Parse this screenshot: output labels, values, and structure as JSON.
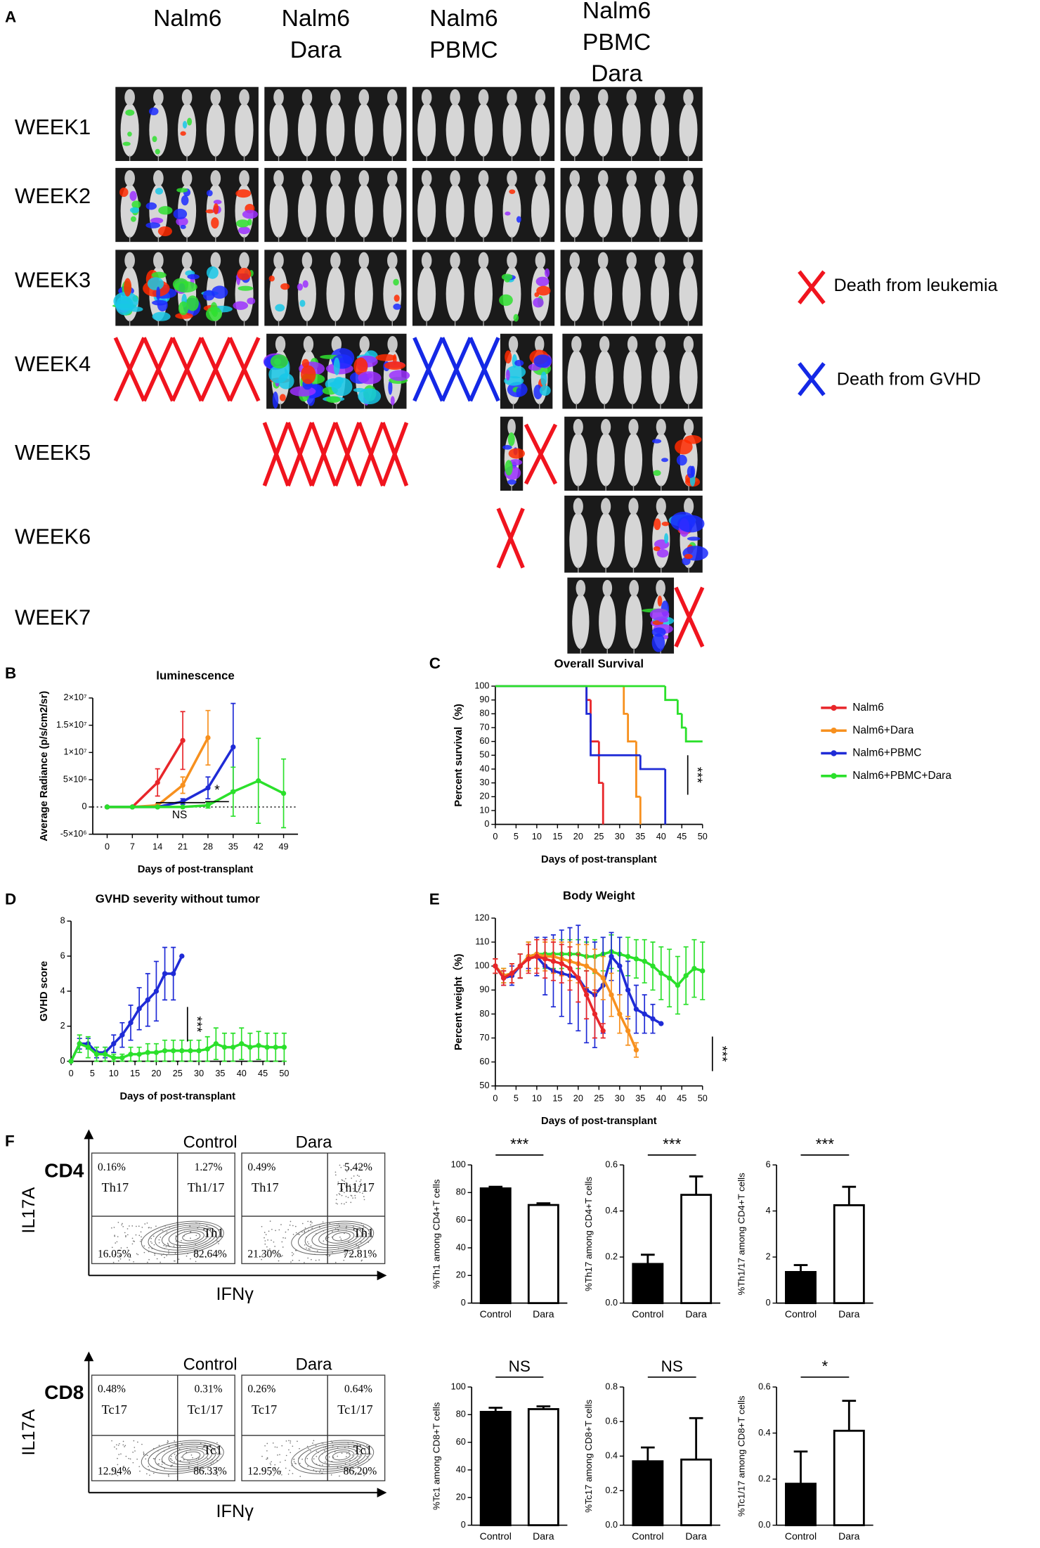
{
  "panel_labels": [
    "A",
    "B",
    "C",
    "D",
    "E",
    "F"
  ],
  "panel_a": {
    "columns": [
      [
        "Nalm6"
      ],
      [
        "Nalm6",
        "Dara"
      ],
      [
        "Nalm6",
        "PBMC"
      ],
      [
        "Nalm6",
        "PBMC",
        "Dara"
      ]
    ],
    "rows": [
      "WEEK1",
      "WEEK2",
      "WEEK3",
      "WEEK4",
      "WEEK5",
      "WEEK6",
      "WEEK7"
    ],
    "legend": [
      "Death from leukemia",
      "Death from GVHD"
    ]
  },
  "chart_data": [
    {
      "type": "line",
      "title": "luminescence",
      "xlabel": "Days of post-transplant",
      "ylabel": "Average Radiance (p/s/cm2/sr)",
      "xlim": [
        -4,
        53
      ],
      "xticks": [
        0,
        7,
        14,
        21,
        28,
        35,
        42,
        49
      ],
      "ylim": [
        -5000000,
        20000000
      ],
      "yticks": [
        {
          "value": -5000000,
          "label": "-5×10⁶"
        },
        0,
        {
          "value": 5000000,
          "label": "5×10⁶"
        },
        {
          "value": 10000000,
          "label": "1×10⁷"
        },
        {
          "value": 15000000,
          "label": "1.5×10⁷"
        },
        {
          "value": 20000000,
          "label": "2×10⁷"
        }
      ],
      "annotations": [
        "NS",
        "*"
      ],
      "series": [
        {
          "color": "#e8262a",
          "x": [
            0,
            7,
            14,
            21
          ],
          "values": [
            0,
            0,
            4500000,
            12200000
          ],
          "errors": [
            0,
            0,
            2500000,
            5300000
          ]
        },
        {
          "color": "#f7901e",
          "x": [
            0,
            7,
            14,
            21,
            28
          ],
          "values": [
            0,
            0,
            300000,
            4000000,
            12700000
          ],
          "errors": [
            0,
            0,
            300000,
            1500000,
            5000000
          ]
        },
        {
          "color": "#1f2bd6",
          "x": [
            0,
            7,
            14,
            21,
            28,
            35
          ],
          "values": [
            0,
            0,
            0,
            1000000,
            3500000,
            11000000
          ],
          "errors": [
            0,
            0,
            0,
            500000,
            2000000,
            8000000
          ]
        },
        {
          "color": "#2be02b",
          "x": [
            0,
            7,
            14,
            21,
            28,
            35,
            42,
            49
          ],
          "values": [
            0,
            0,
            0,
            0,
            300000,
            2800000,
            4800000,
            2500000
          ],
          "errors": [
            0,
            0,
            0,
            0,
            500000,
            4500000,
            7800000,
            6300000
          ]
        }
      ]
    },
    {
      "type": "step",
      "title": "Overall Survival",
      "xlabel": "Days of post-transplant",
      "ylabel": "Percent survival（%)",
      "xlim": [
        0,
        50
      ],
      "xticks": [
        0,
        5,
        10,
        15,
        20,
        25,
        30,
        35,
        40,
        45,
        50
      ],
      "ylim": [
        0,
        100
      ],
      "yticks": [
        0,
        10,
        20,
        30,
        40,
        50,
        60,
        70,
        80,
        90,
        100
      ],
      "annotation": "***",
      "series": [
        {
          "name": "Nalm6",
          "color": "#e8262a",
          "x": [
            0,
            22,
            23,
            25,
            26
          ],
          "values": [
            100,
            90,
            60,
            30,
            0
          ]
        },
        {
          "name": "Nalm6+Dara",
          "color": "#f7901e",
          "x": [
            0,
            31,
            32,
            34,
            35
          ],
          "values": [
            100,
            80,
            60,
            20,
            0
          ]
        },
        {
          "name": "Nalm6+PBMC",
          "color": "#1f2bd6",
          "x": [
            0,
            22,
            23,
            33,
            35,
            41
          ],
          "values": [
            100,
            80,
            50,
            50,
            40,
            0
          ]
        },
        {
          "name": "Nalm6+PBMC+Dara",
          "color": "#2be02b",
          "x": [
            0,
            41,
            44,
            45,
            46,
            50
          ],
          "values": [
            100,
            90,
            80,
            70,
            60,
            60
          ]
        }
      ]
    },
    {
      "type": "line",
      "title": "GVHD severity without tumor",
      "xlabel": "Days of post-transplant",
      "ylabel": "GVHD score",
      "xlim": [
        0,
        50
      ],
      "xticks": [
        0,
        5,
        10,
        15,
        20,
        25,
        30,
        35,
        40,
        45,
        50
      ],
      "ylim": [
        0,
        8
      ],
      "yticks": [
        0,
        2,
        4,
        6,
        8
      ],
      "annotation": "***",
      "series": [
        {
          "color": "#1f2bd6",
          "x": [
            0,
            2,
            4,
            6,
            8,
            10,
            12,
            14,
            16,
            18,
            20,
            22,
            24,
            26
          ],
          "values": [
            0,
            1,
            1,
            0.5,
            0.5,
            1,
            1.5,
            2.2,
            3,
            3.5,
            4,
            5,
            5,
            6
          ],
          "errors": [
            0,
            0.3,
            0.3,
            0.3,
            0.3,
            0.5,
            0.7,
            1,
            1.2,
            1.5,
            1.7,
            1.5,
            1.5,
            0
          ]
        },
        {
          "color": "#2be02b",
          "x": [
            0,
            2,
            4,
            6,
            8,
            10,
            12,
            14,
            16,
            18,
            20,
            22,
            24,
            26,
            28,
            30,
            32,
            34,
            36,
            38,
            40,
            42,
            44,
            46,
            48,
            50
          ],
          "values": [
            0,
            1,
            0.8,
            0.4,
            0.4,
            0.2,
            0.2,
            0.4,
            0.4,
            0.5,
            0.5,
            0.6,
            0.6,
            0.6,
            0.6,
            0.6,
            0.7,
            1,
            0.8,
            0.8,
            1,
            0.8,
            0.9,
            0.8,
            0.8,
            0.8
          ],
          "errors": [
            0,
            0.5,
            0.6,
            0.4,
            0.4,
            0.2,
            0.2,
            0.4,
            0.4,
            0.5,
            0.5,
            0.6,
            0.6,
            0.6,
            0.6,
            0.6,
            0.7,
            0.9,
            0.8,
            0.8,
            0.9,
            0.8,
            0.8,
            0.8,
            0.8,
            0.8
          ]
        }
      ]
    },
    {
      "type": "line",
      "title": "Body Weight",
      "xlabel": "Days of post-transplant",
      "ylabel": "Percent weight（%)",
      "xlim": [
        0,
        50
      ],
      "xticks": [
        0,
        5,
        10,
        15,
        20,
        25,
        30,
        35,
        40,
        45,
        50
      ],
      "ylim": [
        50,
        120
      ],
      "yticks": [
        50,
        60,
        70,
        80,
        90,
        100,
        110,
        120
      ],
      "annotation": "***",
      "series": [
        {
          "color": "#2be02b",
          "x": [
            0,
            2,
            4,
            6,
            8,
            10,
            12,
            14,
            16,
            18,
            20,
            22,
            24,
            26,
            28,
            30,
            32,
            34,
            36,
            38,
            40,
            42,
            44,
            46,
            48,
            50
          ],
          "values": [
            100,
            96,
            97,
            100,
            104,
            105,
            105,
            105,
            105,
            105,
            105,
            104,
            104,
            105,
            106,
            105,
            104,
            103,
            102,
            100,
            97,
            95,
            92,
            96,
            99,
            98
          ],
          "errors": [
            3,
            3,
            4,
            5,
            6,
            6,
            6,
            6,
            6,
            6,
            6,
            6,
            7,
            7,
            7,
            7,
            8,
            8,
            9,
            10,
            11,
            12,
            12,
            12,
            12,
            12
          ]
        },
        {
          "color": "#1f2bd6",
          "x": [
            0,
            2,
            4,
            6,
            8,
            10,
            12,
            14,
            16,
            18,
            20,
            22,
            24,
            26,
            28,
            30,
            32,
            34,
            36,
            38,
            40
          ],
          "values": [
            100,
            95,
            96,
            100,
            104,
            104,
            100,
            98,
            97,
            96,
            95,
            90,
            88,
            92,
            104,
            100,
            90,
            82,
            80,
            78,
            76
          ],
          "errors": [
            3,
            3,
            4,
            5,
            5,
            8,
            12,
            15,
            18,
            20,
            22,
            22,
            22,
            20,
            10,
            12,
            12,
            10,
            8,
            6,
            0
          ]
        },
        {
          "color": "#f7901e",
          "x": [
            0,
            2,
            4,
            6,
            8,
            10,
            12,
            14,
            16,
            18,
            20,
            22,
            24,
            26,
            28,
            30,
            32,
            34
          ],
          "values": [
            100,
            96,
            97,
            100,
            104,
            105,
            104,
            104,
            103,
            102,
            101,
            100,
            98,
            95,
            88,
            80,
            73,
            65
          ],
          "errors": [
            3,
            3,
            4,
            5,
            6,
            6,
            6,
            7,
            7,
            8,
            8,
            9,
            9,
            9,
            9,
            8,
            6,
            3
          ]
        },
        {
          "color": "#e8262a",
          "x": [
            0,
            2,
            4,
            6,
            8,
            10,
            12,
            14,
            16,
            18,
            20,
            22,
            24,
            26
          ],
          "values": [
            100,
            95,
            97,
            100,
            103,
            104,
            103,
            102,
            101,
            99,
            95,
            88,
            80,
            73
          ],
          "errors": [
            3,
            3,
            4,
            5,
            6,
            7,
            8,
            8,
            8,
            9,
            10,
            10,
            10,
            3
          ]
        }
      ]
    },
    {
      "type": "bar",
      "ylabel": "%Th1 among CD4+T cells",
      "categories": [
        "Control",
        "Dara"
      ],
      "values": [
        83,
        71
      ],
      "errors": [
        1.2,
        1.2
      ],
      "colors": [
        "#000000",
        "#ffffff"
      ],
      "annotation": "***",
      "ylim": [
        0,
        100
      ],
      "yticks": [
        0,
        20,
        40,
        60,
        80,
        100
      ]
    },
    {
      "type": "bar",
      "ylabel": "%Th17 among CD4+T cells",
      "categories": [
        "Control",
        "Dara"
      ],
      "values": [
        0.17,
        0.47
      ],
      "errors": [
        0.04,
        0.08
      ],
      "colors": [
        "#000000",
        "#ffffff"
      ],
      "annotation": "***",
      "ylim": [
        0,
        0.6
      ],
      "yticks": [
        {
          "value": 0,
          "label": "0.0"
        },
        {
          "value": 0.2,
          "label": "0.2"
        },
        {
          "value": 0.4,
          "label": "0.4"
        },
        {
          "value": 0.6,
          "label": "0.6"
        }
      ]
    },
    {
      "type": "bar",
      "ylabel": "%Th1/17 among CD4+T cells",
      "categories": [
        "Control",
        "Dara"
      ],
      "values": [
        1.35,
        4.25
      ],
      "errors": [
        0.3,
        0.8
      ],
      "colors": [
        "#000000",
        "#ffffff"
      ],
      "annotation": "***",
      "ylim": [
        0,
        6
      ],
      "yticks": [
        0,
        2,
        4,
        6
      ]
    },
    {
      "type": "bar",
      "ylabel": "%Tc1 among CD8+T cells",
      "categories": [
        "Control",
        "Dara"
      ],
      "values": [
        82,
        84
      ],
      "errors": [
        3,
        2
      ],
      "colors": [
        "#000000",
        "#ffffff"
      ],
      "annotation": "NS",
      "ylim": [
        0,
        100
      ],
      "yticks": [
        0,
        20,
        40,
        60,
        80,
        100
      ]
    },
    {
      "type": "bar",
      "ylabel": "%Tc17 among CD8+T cells",
      "categories": [
        "Control",
        "Dara"
      ],
      "values": [
        0.37,
        0.38
      ],
      "errors": [
        0.08,
        0.24
      ],
      "colors": [
        "#000000",
        "#ffffff"
      ],
      "annotation": "NS",
      "ylim": [
        0,
        0.8
      ],
      "yticks": [
        {
          "value": 0,
          "label": "0.0"
        },
        {
          "value": 0.2,
          "label": "0.2"
        },
        {
          "value": 0.4,
          "label": "0.4"
        },
        {
          "value": 0.6,
          "label": "0.6"
        },
        {
          "value": 0.8,
          "label": "0.8"
        }
      ]
    },
    {
      "type": "bar",
      "ylabel": "%Tc1/17 among CD8+T cells",
      "categories": [
        "Control",
        "Dara"
      ],
      "values": [
        0.18,
        0.41
      ],
      "errors": [
        0.14,
        0.13
      ],
      "colors": [
        "#000000",
        "#ffffff"
      ],
      "annotation": "*",
      "ylim": [
        0,
        0.6
      ],
      "yticks": [
        {
          "value": 0,
          "label": "0.0"
        },
        {
          "value": 0.2,
          "label": "0.2"
        },
        {
          "value": 0.4,
          "label": "0.4"
        },
        {
          "value": 0.6,
          "label": "0.6"
        }
      ]
    }
  ],
  "panel_f": {
    "markers": [
      "CD4",
      "CD8"
    ],
    "y_axis_label": "IL17A",
    "x_axis_label": "IFNγ",
    "groups": [
      "Control",
      "Dara"
    ],
    "plots": [
      [
        "0.16%",
        "Th17",
        "1.27%",
        "Th1/17",
        "16.05%",
        "Th1",
        "82.64%"
      ],
      [
        "0.49%",
        "Th17",
        "5.42%",
        "Th1/17",
        "21.30%",
        "Th1",
        "72.81%"
      ],
      [
        "0.48%",
        "Tc17",
        "0.31%",
        "Tc1/17",
        "12.94%",
        "Tc1",
        "86.33%"
      ],
      [
        "0.26%",
        "Tc17",
        "0.64%",
        "Tc1/17",
        "12.95%",
        "Tc1",
        "86.20%"
      ]
    ]
  }
}
